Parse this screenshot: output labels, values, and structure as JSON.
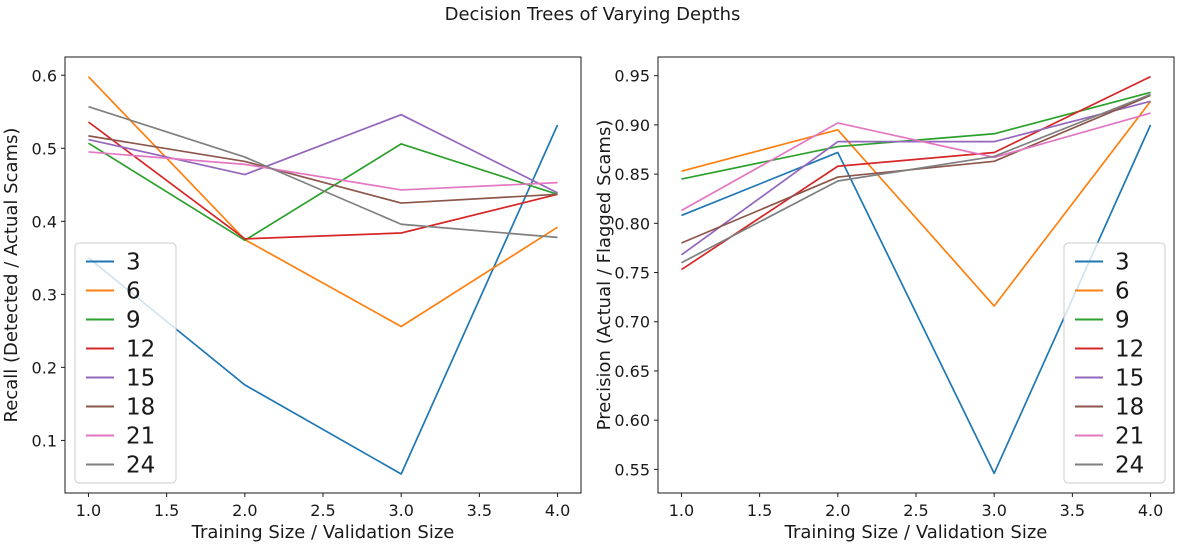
{
  "figure": {
    "title": "Decision Trees of Varying Depths"
  },
  "chart_data": [
    {
      "type": "line",
      "name": "recall",
      "ylabel": "Recall (Detected / Actual Scams)",
      "xlabel": "Training Size / Validation Size",
      "x": [
        1.0,
        2.0,
        3.0,
        4.0
      ],
      "xlim": [
        0.85,
        4.15
      ],
      "ylim": [
        0.028,
        0.625
      ],
      "xtick_labels": [
        "1.0",
        "1.5",
        "2.0",
        "2.5",
        "3.0",
        "3.5",
        "4.0"
      ],
      "ytick_labels": [
        "0.1",
        "0.2",
        "0.3",
        "0.4",
        "0.5",
        "0.6"
      ],
      "grid": false,
      "legend_position": "lower left",
      "series": [
        {
          "name": "3",
          "color": "#1f77b4",
          "values": [
            0.35,
            0.176,
            0.054,
            0.532
          ]
        },
        {
          "name": "6",
          "color": "#ff7f0e",
          "values": [
            0.598,
            0.375,
            0.256,
            0.392
          ]
        },
        {
          "name": "9",
          "color": "#2ca02c",
          "values": [
            0.507,
            0.374,
            0.506,
            0.437
          ]
        },
        {
          "name": "12",
          "color": "#d62728",
          "values": [
            0.536,
            0.376,
            0.384,
            0.437
          ]
        },
        {
          "name": "15",
          "color": "#9467bd",
          "values": [
            0.512,
            0.464,
            0.546,
            0.439
          ]
        },
        {
          "name": "18",
          "color": "#8c564b",
          "values": [
            0.517,
            0.482,
            0.425,
            0.437
          ]
        },
        {
          "name": "21",
          "color": "#e377c2",
          "values": [
            0.495,
            0.478,
            0.443,
            0.453
          ]
        },
        {
          "name": "24",
          "color": "#7f7f7f",
          "values": [
            0.557,
            0.488,
            0.396,
            0.378
          ]
        }
      ]
    },
    {
      "type": "line",
      "name": "precision",
      "ylabel": "Precision (Actual / Flagged Scams)",
      "xlabel": "Training Size / Validation Size",
      "x": [
        1.0,
        2.0,
        3.0,
        4.0
      ],
      "xlim": [
        0.85,
        4.15
      ],
      "ylim": [
        0.526,
        0.969
      ],
      "xtick_labels": [
        "1.0",
        "1.5",
        "2.0",
        "2.5",
        "3.0",
        "3.5",
        "4.0"
      ],
      "ytick_labels": [
        "0.55",
        "0.60",
        "0.65",
        "0.70",
        "0.75",
        "0.80",
        "0.85",
        "0.90",
        "0.95"
      ],
      "grid": false,
      "legend_position": "lower right",
      "series": [
        {
          "name": "3",
          "color": "#1f77b4",
          "values": [
            0.808,
            0.872,
            0.546,
            0.9
          ]
        },
        {
          "name": "6",
          "color": "#ff7f0e",
          "values": [
            0.853,
            0.895,
            0.716,
            0.924
          ]
        },
        {
          "name": "9",
          "color": "#2ca02c",
          "values": [
            0.845,
            0.878,
            0.891,
            0.933
          ]
        },
        {
          "name": "12",
          "color": "#d62728",
          "values": [
            0.753,
            0.858,
            0.872,
            0.949
          ]
        },
        {
          "name": "15",
          "color": "#9467bd",
          "values": [
            0.768,
            0.883,
            0.883,
            0.924
          ]
        },
        {
          "name": "18",
          "color": "#8c564b",
          "values": [
            0.78,
            0.847,
            0.863,
            0.93
          ]
        },
        {
          "name": "21",
          "color": "#e377c2",
          "values": [
            0.813,
            0.902,
            0.867,
            0.912
          ]
        },
        {
          "name": "24",
          "color": "#7f7f7f",
          "values": [
            0.76,
            0.843,
            0.868,
            0.931
          ]
        }
      ]
    }
  ],
  "style": {
    "axis_color": "#1a1a1a",
    "text_color": "#1a1a1a",
    "legend_border_color": "#cccccc",
    "background": "#ffffff"
  }
}
